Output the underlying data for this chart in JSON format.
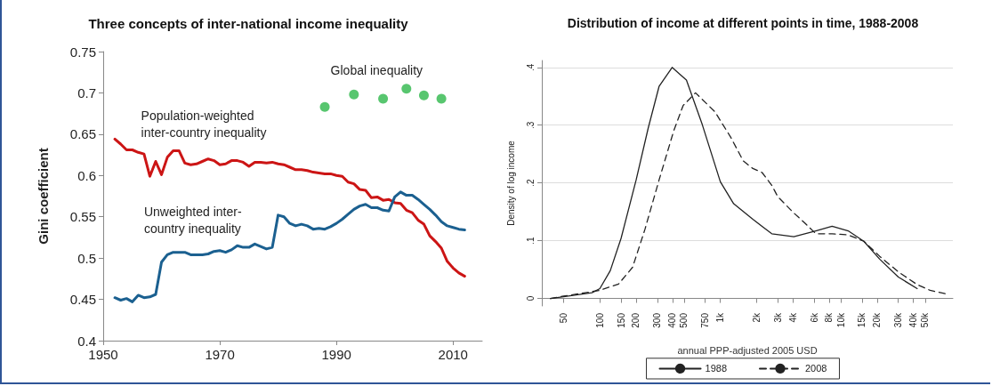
{
  "chart_data": [
    {
      "type": "line",
      "title": "Three concepts of inter-national income inequality",
      "ylabel": "Gini coefficient",
      "xlim": [
        1950,
        2015
      ],
      "xticks": [
        1950,
        1970,
        1990,
        2010
      ],
      "ylim": [
        0.4,
        0.75
      ],
      "yticks": [
        0.4,
        0.45,
        0.5,
        0.55,
        0.6,
        0.65,
        0.7,
        0.75
      ],
      "grid": false,
      "legend": false,
      "marker": "none",
      "series": [
        {
          "name": "Population-weighted\ninter-country inequality",
          "color": "#cc1515",
          "x": [
            1952,
            1953,
            1954,
            1955,
            1956,
            1957,
            1958,
            1959,
            1960,
            1961,
            1962,
            1963,
            1964,
            1965,
            1966,
            1967,
            1968,
            1969,
            1970,
            1971,
            1972,
            1973,
            1974,
            1975,
            1976,
            1977,
            1978,
            1979,
            1980,
            1981,
            1982,
            1983,
            1984,
            1985,
            1986,
            1987,
            1988,
            1989,
            1990,
            1991,
            1992,
            1993,
            1994,
            1995,
            1996,
            1997,
            1998,
            1999,
            2000,
            2001,
            2002,
            2003,
            2004,
            2005,
            2006,
            2007,
            2008,
            2009,
            2010,
            2011,
            2012
          ],
          "values": [
            0.644,
            0.638,
            0.631,
            0.631,
            0.628,
            0.626,
            0.599,
            0.617,
            0.601,
            0.622,
            0.63,
            0.63,
            0.615,
            0.613,
            0.614,
            0.617,
            0.62,
            0.618,
            0.613,
            0.614,
            0.618,
            0.618,
            0.616,
            0.611,
            0.616,
            0.616,
            0.615,
            0.616,
            0.614,
            0.613,
            0.61,
            0.607,
            0.607,
            0.606,
            0.604,
            0.603,
            0.602,
            0.602,
            0.6,
            0.599,
            0.592,
            0.59,
            0.583,
            0.582,
            0.573,
            0.574,
            0.57,
            0.571,
            0.567,
            0.566,
            0.558,
            0.555,
            0.546,
            0.541,
            0.527,
            0.52,
            0.512,
            0.496,
            0.488,
            0.482,
            0.478
          ]
        },
        {
          "name": "Unweighted inter-\ncountry inequality",
          "color": "#1b6090",
          "x": [
            1952,
            1953,
            1954,
            1955,
            1956,
            1957,
            1958,
            1959,
            1960,
            1961,
            1962,
            1963,
            1964,
            1965,
            1966,
            1967,
            1968,
            1969,
            1970,
            1971,
            1972,
            1973,
            1974,
            1975,
            1976,
            1977,
            1978,
            1979,
            1980,
            1981,
            1982,
            1983,
            1984,
            1985,
            1986,
            1987,
            1988,
            1989,
            1990,
            1991,
            1992,
            1993,
            1994,
            1995,
            1996,
            1997,
            1998,
            1999,
            2000,
            2001,
            2002,
            2003,
            2004,
            2005,
            2006,
            2007,
            2008,
            2009,
            2010,
            2011,
            2012
          ],
          "values": [
            0.452,
            0.449,
            0.451,
            0.447,
            0.455,
            0.452,
            0.453,
            0.456,
            0.495,
            0.504,
            0.507,
            0.507,
            0.507,
            0.504,
            0.504,
            0.504,
            0.505,
            0.508,
            0.509,
            0.507,
            0.51,
            0.515,
            0.513,
            0.513,
            0.517,
            0.514,
            0.511,
            0.513,
            0.552,
            0.55,
            0.542,
            0.539,
            0.541,
            0.539,
            0.535,
            0.536,
            0.535,
            0.538,
            0.542,
            0.547,
            0.553,
            0.559,
            0.563,
            0.565,
            0.561,
            0.561,
            0.558,
            0.557,
            0.574,
            0.58,
            0.576,
            0.576,
            0.571,
            0.565,
            0.559,
            0.552,
            0.544,
            0.539,
            0.537,
            0.535,
            0.534
          ]
        },
        {
          "name": "Global inequality",
          "type": "scatter",
          "marker": "circle",
          "color": "#2eb84b",
          "x": [
            1988,
            1993,
            1998,
            2002,
            2005,
            2008
          ],
          "values": [
            0.683,
            0.698,
            0.693,
            0.705,
            0.697,
            0.693
          ]
        }
      ]
    },
    {
      "type": "line",
      "title": "Distribution of income at different points in time, 1988-2008",
      "xlabel": "annual PPP-adjusted 2005 USD",
      "ylabel": "Density of log income",
      "log": "x",
      "xlim": [
        33,
        85000
      ],
      "xticks": [
        50,
        100,
        150,
        200,
        300,
        400,
        500,
        750,
        {
          "value": 1000,
          "label": "1k"
        },
        {
          "value": 2000,
          "label": "2k"
        },
        {
          "value": 3000,
          "label": "3k"
        },
        {
          "value": 4000,
          "label": "4k"
        },
        {
          "value": 6000,
          "label": "6k"
        },
        {
          "value": 8000,
          "label": "8k"
        },
        {
          "value": 10000,
          "label": "10k"
        },
        {
          "value": 15000,
          "label": "15k"
        },
        {
          "value": 20000,
          "label": "20k"
        },
        {
          "value": 30000,
          "label": "30k"
        },
        {
          "value": 40000,
          "label": "40k"
        },
        {
          "value": 50000,
          "label": "50k"
        }
      ],
      "ylim": [
        -0.013,
        0.412
      ],
      "yticks": [
        0,
        {
          "value": 0.1,
          "label": ".1"
        },
        {
          "value": 0.2,
          "label": ".2"
        },
        {
          "value": 0.3,
          "label": ".3"
        },
        {
          "value": 0.4,
          "label": ".4"
        }
      ],
      "grid": "y",
      "legend": "bottom",
      "marker": "none",
      "series": [
        {
          "name": "1988",
          "color": "#222222",
          "line_style": "solid",
          "x": [
            39,
            50,
            86,
            100,
            122,
            150,
            200,
            252,
            310,
            398,
            523,
            708,
            1000,
            1290,
            1860,
            2670,
            4070,
            6200,
            8460,
            11500,
            15500,
            21000,
            30000,
            43000
          ],
          "values": [
            0,
            0.003,
            0.01,
            0.017,
            0.048,
            0.104,
            0.205,
            0.295,
            0.367,
            0.4,
            0.378,
            0.301,
            0.202,
            0.164,
            0.137,
            0.112,
            0.107,
            0.117,
            0.125,
            0.117,
            0.099,
            0.068,
            0.037,
            0.017
          ]
        },
        {
          "name": "2008",
          "color": "#222222",
          "line_style": "dashed",
          "x": [
            39,
            50,
            100,
            143,
            187,
            237,
            310,
            410,
            491,
            622,
            903,
            1220,
            1550,
            1860,
            2220,
            2670,
            3000,
            4070,
            5000,
            6200,
            8460,
            11500,
            15500,
            21000,
            30000,
            43000,
            55000,
            74000
          ],
          "values": [
            0,
            0.004,
            0.014,
            0.025,
            0.054,
            0.12,
            0.205,
            0.29,
            0.334,
            0.356,
            0.323,
            0.279,
            0.238,
            0.225,
            0.218,
            0.196,
            0.176,
            0.148,
            0.131,
            0.112,
            0.112,
            0.11,
            0.099,
            0.073,
            0.046,
            0.024,
            0.014,
            0.008
          ]
        }
      ]
    }
  ]
}
